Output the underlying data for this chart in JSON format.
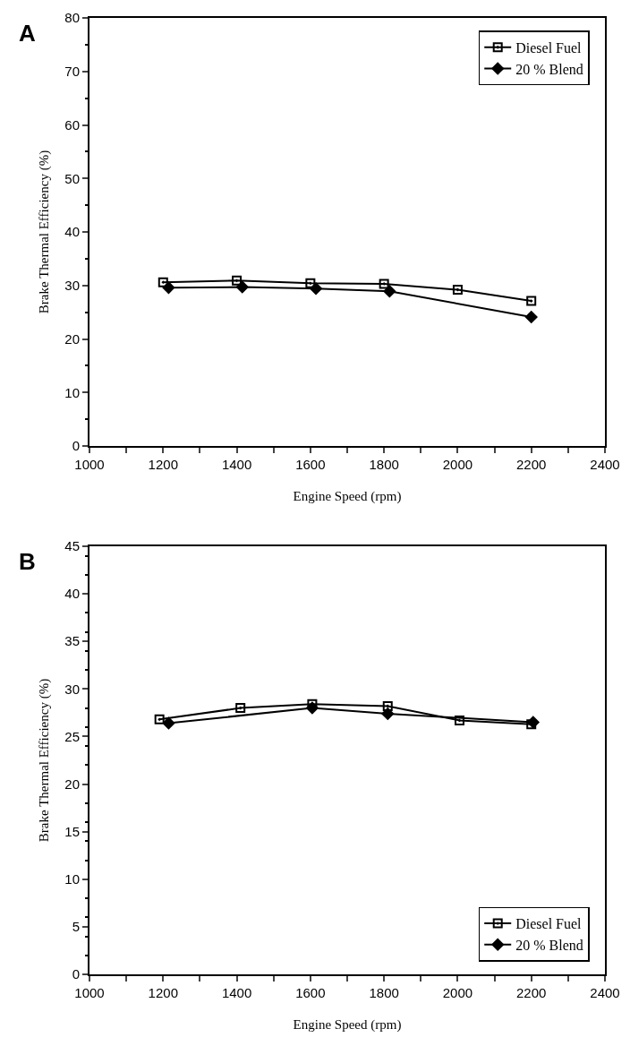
{
  "chart_data": [
    {
      "type": "line",
      "annotations": [
        "A"
      ],
      "xlabel": "Engine Speed (rpm)",
      "ylabel": "Brake Thermal Efficiency (%)",
      "xlim": [
        1000,
        2400
      ],
      "xticks": [
        1000,
        {
          "value": 1100,
          "label": null
        },
        1200,
        {
          "value": 1300,
          "label": null
        },
        1400,
        {
          "value": 1500,
          "label": null
        },
        1600,
        {
          "value": 1700,
          "label": null
        },
        1800,
        {
          "value": 1900,
          "label": null
        },
        2000,
        {
          "value": 2100,
          "label": null
        },
        2200,
        {
          "value": 2300,
          "label": null
        },
        2400
      ],
      "ylim": [
        0,
        80
      ],
      "yticks": [
        0,
        10,
        20,
        30,
        40,
        50,
        60,
        70,
        80
      ],
      "grid": false,
      "legend": "top right",
      "line_style": "solid",
      "series": [
        {
          "name": "Diesel Fuel",
          "color": "#000000",
          "marker": "square",
          "x": [
            1200,
            1400,
            1600,
            1800,
            2000,
            2200
          ],
          "values": [
            30.6,
            30.9,
            30.4,
            30.3,
            29.2,
            27.1
          ]
        },
        {
          "name": "20 % Blend",
          "color": "#000000",
          "marker": "diamond",
          "x": [
            1215,
            1415,
            1615,
            1815,
            2200
          ],
          "values": [
            29.6,
            29.7,
            29.4,
            28.9,
            24.1
          ]
        }
      ]
    },
    {
      "type": "line",
      "annotations": [
        "B"
      ],
      "xlabel": "Engine Speed (rpm)",
      "ylabel": "Brake Thermal Efficiency (%)",
      "xlim": [
        1000,
        2400
      ],
      "xticks": [
        1000,
        {
          "value": 1100,
          "label": null
        },
        1200,
        {
          "value": 1300,
          "label": null
        },
        1400,
        {
          "value": 1500,
          "label": null
        },
        1600,
        {
          "value": 1700,
          "label": null
        },
        1800,
        {
          "value": 1900,
          "label": null
        },
        2000,
        {
          "value": 2100,
          "label": null
        },
        2200,
        {
          "value": 2300,
          "label": null
        },
        2400
      ],
      "ylim": [
        0,
        45
      ],
      "yticks": [
        0,
        5,
        10,
        15,
        20,
        25,
        30,
        35,
        40,
        45
      ],
      "grid": false,
      "legend": "bottom right",
      "line_style": "solid",
      "series": [
        {
          "name": "Diesel Fuel",
          "color": "#000000",
          "marker": "square",
          "x": [
            1190,
            1410,
            1605,
            1810,
            2005,
            2200
          ],
          "values": [
            26.8,
            28.0,
            28.4,
            28.2,
            26.7,
            26.3
          ]
        },
        {
          "name": "20 % Blend",
          "color": "#000000",
          "marker": "diamond",
          "x": [
            1215,
            1605,
            1810,
            2205
          ],
          "values": [
            26.4,
            28.0,
            27.4,
            26.5
          ]
        }
      ]
    }
  ]
}
